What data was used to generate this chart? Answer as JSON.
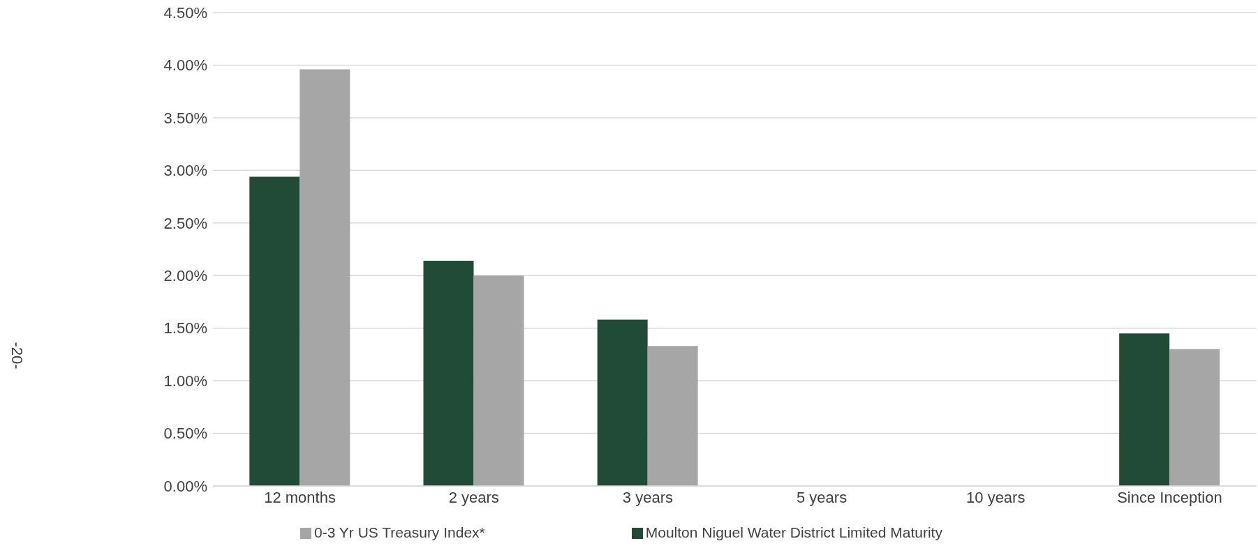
{
  "chart_data": {
    "type": "bar",
    "categories": [
      "12 months",
      "2 years",
      "3 years",
      "5 years",
      "10 years",
      "Since Inception"
    ],
    "series": [
      {
        "name": "Moulton Niguel Water District Limited Maturity",
        "color": "#214b37",
        "values": [
          2.94,
          2.14,
          1.58,
          null,
          null,
          1.45
        ]
      },
      {
        "name": "0-3 Yr US Treasury Index*",
        "color": "#a6a6a6",
        "values": [
          3.96,
          2.0,
          1.33,
          null,
          null,
          1.3
        ]
      }
    ],
    "ylim": [
      0,
      4.5
    ],
    "yticks": [
      {
        "value": 0,
        "label": "0.00%"
      },
      {
        "value": 0.5,
        "label": "0.50%"
      },
      {
        "value": 1,
        "label": "1.00%"
      },
      {
        "value": 1.5,
        "label": "1.50%"
      },
      {
        "value": 2,
        "label": "2.00%"
      },
      {
        "value": 2.5,
        "label": "2.50%"
      },
      {
        "value": 3,
        "label": "3.00%"
      },
      {
        "value": 3.5,
        "label": "3.50%"
      },
      {
        "value": 4,
        "label": "4.00%"
      },
      {
        "value": 4.5,
        "label": "4.50%"
      }
    ],
    "grid": "y",
    "legend": "bottom",
    "annotations": [
      "-20-"
    ]
  }
}
